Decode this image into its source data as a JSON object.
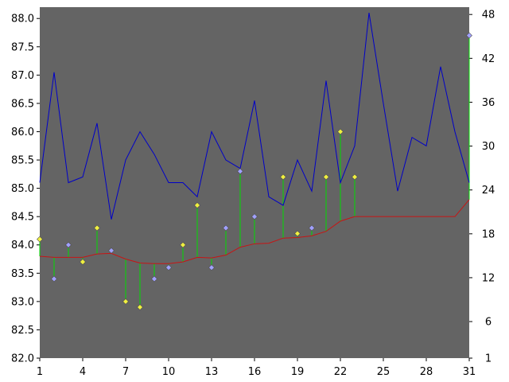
{
  "chart_data": {
    "type": "line",
    "title": "",
    "x": [
      1,
      2,
      3,
      4,
      5,
      6,
      7,
      8,
      9,
      10,
      11,
      12,
      13,
      14,
      15,
      16,
      17,
      18,
      19,
      20,
      21,
      22,
      23,
      24,
      25,
      26,
      27,
      28,
      29,
      30,
      31
    ],
    "xlim": [
      1,
      31
    ],
    "ylim_left": [
      82.0,
      88.2
    ],
    "ylim_right": [
      1,
      49
    ],
    "left_ticks": [
      "82.0",
      "82.5",
      "83.0",
      "83.5",
      "84.0",
      "84.5",
      "85.0",
      "85.5",
      "86.0",
      "86.5",
      "87.0",
      "87.5",
      "88.0"
    ],
    "right_ticks": [
      "1",
      "6",
      "12",
      "18",
      "24",
      "30",
      "36",
      "42",
      "48"
    ],
    "x_ticks": [
      "1",
      "4",
      "7",
      "10",
      "13",
      "16",
      "19",
      "22",
      "25",
      "28",
      "31"
    ],
    "grid": false,
    "colors": {
      "plot_background": "#646464",
      "blue_line": "#0000c8",
      "red_line": "#c81414",
      "stems": "#00dc00",
      "yellow_marker": "#f0f040",
      "lavender_marker": "#a0a0ff"
    },
    "series": [
      {
        "role": "blue-line",
        "axis": "left",
        "values": [
          85.1,
          87.05,
          85.1,
          85.2,
          86.15,
          84.45,
          85.5,
          86.0,
          85.6,
          85.1,
          85.1,
          84.85,
          86.0,
          85.5,
          85.35,
          86.55,
          84.85,
          84.7,
          85.5,
          84.95,
          86.9,
          85.1,
          85.75,
          88.1,
          86.5,
          84.95,
          85.9,
          85.75,
          87.15,
          86.0,
          85.1
        ]
      },
      {
        "role": "red-line",
        "axis": "left",
        "values": [
          83.8,
          83.78,
          83.78,
          83.78,
          83.84,
          83.85,
          83.75,
          83.68,
          83.67,
          83.67,
          83.7,
          83.78,
          83.77,
          83.82,
          83.96,
          84.02,
          84.03,
          84.12,
          84.13,
          84.16,
          84.24,
          84.42,
          84.5,
          84.5,
          84.5,
          84.5,
          84.5,
          84.5,
          84.5,
          84.5,
          84.8
        ]
      },
      {
        "role": "diamond-markers",
        "axis": "left",
        "points": [
          {
            "x": 1,
            "y": 84.1,
            "color": "yellow"
          },
          {
            "x": 2,
            "y": 83.4,
            "color": "lavender"
          },
          {
            "x": 3,
            "y": 84.0,
            "color": "lavender"
          },
          {
            "x": 4,
            "y": 83.7,
            "color": "yellow"
          },
          {
            "x": 5,
            "y": 84.3,
            "color": "yellow"
          },
          {
            "x": 6,
            "y": 83.9,
            "color": "lavender"
          },
          {
            "x": 7,
            "y": 83.0,
            "color": "yellow"
          },
          {
            "x": 8,
            "y": 82.9,
            "color": "yellow"
          },
          {
            "x": 9,
            "y": 83.4,
            "color": "lavender"
          },
          {
            "x": 10,
            "y": 83.6,
            "color": "lavender"
          },
          {
            "x": 11,
            "y": 84.0,
            "color": "yellow"
          },
          {
            "x": 12,
            "y": 84.7,
            "color": "yellow"
          },
          {
            "x": 13,
            "y": 83.6,
            "color": "lavender"
          },
          {
            "x": 14,
            "y": 84.3,
            "color": "lavender"
          },
          {
            "x": 15,
            "y": 85.3,
            "color": "lavender"
          },
          {
            "x": 16,
            "y": 84.5,
            "color": "lavender"
          },
          {
            "x": 18,
            "y": 85.2,
            "color": "yellow"
          },
          {
            "x": 19,
            "y": 84.2,
            "color": "yellow"
          },
          {
            "x": 20,
            "y": 84.3,
            "color": "lavender"
          },
          {
            "x": 21,
            "y": 85.2,
            "color": "yellow"
          },
          {
            "x": 22,
            "y": 86.0,
            "color": "yellow"
          },
          {
            "x": 23,
            "y": 85.2,
            "color": "yellow"
          },
          {
            "x": 31,
            "y": 87.7,
            "color": "lavender"
          }
        ]
      }
    ]
  }
}
